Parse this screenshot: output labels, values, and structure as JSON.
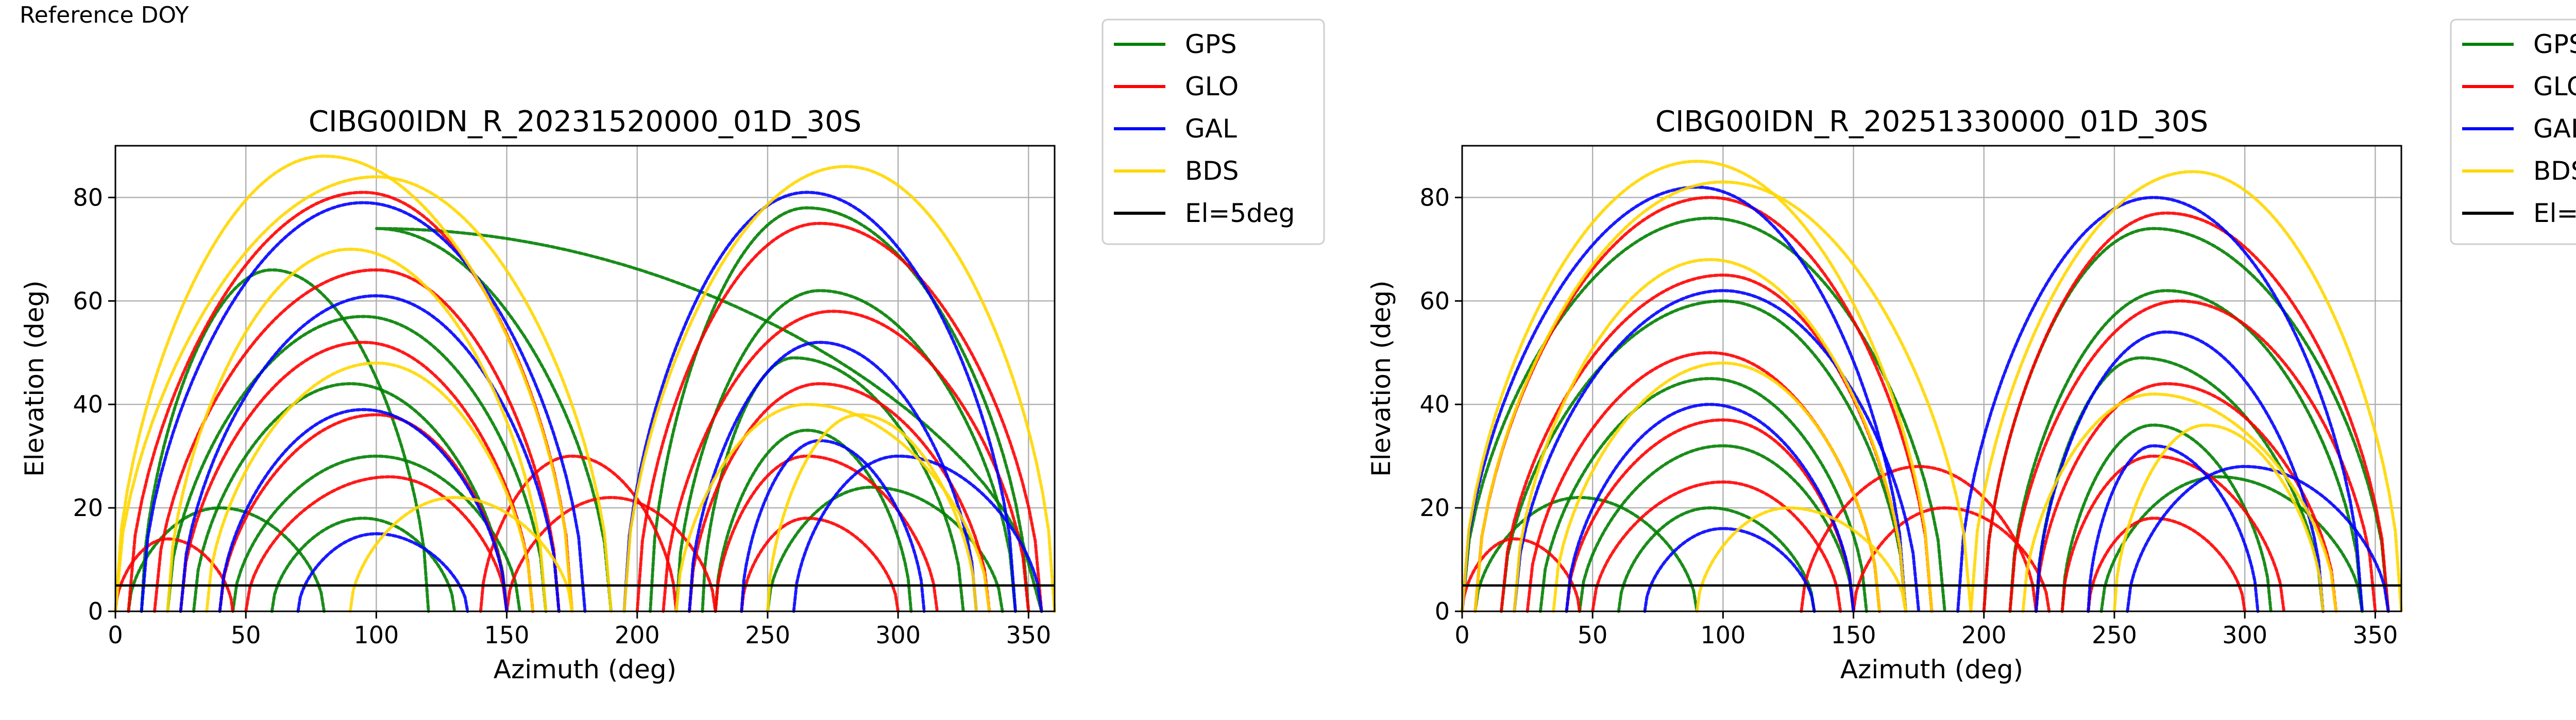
{
  "figure": {
    "label": "Reference DOY"
  },
  "chart_data": [
    {
      "type": "scatter",
      "title": "CIBG00IDN_R_20231520000_01D_30S",
      "xlabel": "Azimuth (deg)",
      "ylabel": "Elevation (deg)",
      "xlim": [
        0,
        360
      ],
      "ylim": [
        0,
        90
      ],
      "xticks": [
        0,
        50,
        100,
        150,
        200,
        250,
        300,
        350
      ],
      "yticks": [
        0,
        20,
        40,
        60,
        80
      ],
      "grid": true,
      "legend_position": "outside-right",
      "legend": [
        "GPS",
        "GLO",
        "GAL",
        "BDS",
        "El=5deg"
      ],
      "series": [
        {
          "name": "GPS",
          "color": "#008000",
          "arcs": [
            {
              "az": [
                355,
                100,
                190
              ],
              "max_el": 74
            },
            {
              "az": [
                20,
                95,
                165
              ],
              "max_el": 57
            },
            {
              "az": [
                30,
                90,
                150
              ],
              "max_el": 44
            },
            {
              "az": [
                45,
                100,
                155
              ],
              "max_el": 30
            },
            {
              "az": [
                60,
                95,
                130
              ],
              "max_el": 18
            },
            {
              "az": [
                205,
                265,
                350
              ],
              "max_el": 78
            },
            {
              "az": [
                215,
                270,
                345
              ],
              "max_el": 62
            },
            {
              "az": [
                225,
                260,
                325
              ],
              "max_el": 49
            },
            {
              "az": [
                230,
                265,
                305
              ],
              "max_el": 35
            },
            {
              "az": [
                5,
                40,
                80
              ],
              "max_el": 20
            },
            {
              "az": [
                250,
                290,
                340
              ],
              "max_el": 24
            },
            {
              "az": [
                10,
                60,
                120
              ],
              "max_el": 66
            }
          ]
        },
        {
          "name": "GLO",
          "color": "#ff0000",
          "arcs": [
            {
              "az": [
                5,
                95,
                175
              ],
              "max_el": 81
            },
            {
              "az": [
                15,
                100,
                170
              ],
              "max_el": 66
            },
            {
              "az": [
                25,
                95,
                160
              ],
              "max_el": 52
            },
            {
              "az": [
                40,
                100,
                150
              ],
              "max_el": 38
            },
            {
              "az": [
                50,
                105,
                150
              ],
              "max_el": 26
            },
            {
              "az": [
                200,
                270,
                355
              ],
              "max_el": 75
            },
            {
              "az": [
                210,
                275,
                350
              ],
              "max_el": 58
            },
            {
              "az": [
                220,
                270,
                335
              ],
              "max_el": 44
            },
            {
              "az": [
                230,
                265,
                315
              ],
              "max_el": 30
            },
            {
              "az": [
                240,
                265,
                300
              ],
              "max_el": 18
            },
            {
              "az": [
                0,
                20,
                45
              ],
              "max_el": 14
            },
            {
              "az": [
                140,
                175,
                215
              ],
              "max_el": 30
            },
            {
              "az": [
                150,
                190,
                230
              ],
              "max_el": 22
            }
          ]
        },
        {
          "name": "GAL",
          "color": "#0000ff",
          "arcs": [
            {
              "az": [
                10,
                95,
                180
              ],
              "max_el": 79
            },
            {
              "az": [
                25,
                100,
                170
              ],
              "max_el": 61
            },
            {
              "az": [
                40,
                95,
                150
              ],
              "max_el": 39
            },
            {
              "az": [
                70,
                100,
                135
              ],
              "max_el": 15
            },
            {
              "az": [
                195,
                265,
                345
              ],
              "max_el": 81
            },
            {
              "az": [
                220,
                270,
                330
              ],
              "max_el": 52
            },
            {
              "az": [
                240,
                270,
                310
              ],
              "max_el": 33
            },
            {
              "az": [
                260,
                300,
                355
              ],
              "max_el": 30
            }
          ]
        },
        {
          "name": "BDS",
          "color": "#ffd700",
          "arcs": [
            {
              "az": [
                0,
                80,
                175
              ],
              "max_el": 88
            },
            {
              "az": [
                0,
                100,
                190
              ],
              "max_el": 84
            },
            {
              "az": [
                20,
                90,
                165
              ],
              "max_el": 70
            },
            {
              "az": [
                35,
                100,
                160
              ],
              "max_el": 48
            },
            {
              "az": [
                195,
                280,
                360
              ],
              "max_el": 86
            },
            {
              "az": [
                215,
                265,
                335
              ],
              "max_el": 40
            },
            {
              "az": [
                90,
                130,
                175
              ],
              "max_el": 22
            },
            {
              "az": [
                250,
                285,
                330
              ],
              "max_el": 38
            }
          ]
        },
        {
          "name": "El=5deg",
          "color": "#000000",
          "type": "line",
          "x": [
            0,
            360
          ],
          "y": [
            5,
            5
          ]
        }
      ]
    },
    {
      "type": "scatter",
      "title": "CIBG00IDN_R_20251330000_01D_30S",
      "xlabel": "Azimuth (deg)",
      "ylabel": "Elevation (deg)",
      "xlim": [
        0,
        360
      ],
      "ylim": [
        0,
        90
      ],
      "xticks": [
        0,
        50,
        100,
        150,
        200,
        250,
        300,
        350
      ],
      "yticks": [
        0,
        20,
        40,
        60,
        80
      ],
      "grid": true,
      "legend_position": "outside-right",
      "legend": [
        "GPS",
        "GLO",
        "GAL",
        "BDS",
        "El=5deg"
      ],
      "series": [
        {
          "name": "GPS",
          "color": "#008000",
          "arcs": [
            {
              "az": [
                0,
                95,
                185
              ],
              "max_el": 76
            },
            {
              "az": [
                15,
                100,
                170
              ],
              "max_el": 60
            },
            {
              "az": [
                30,
                95,
                155
              ],
              "max_el": 45
            },
            {
              "az": [
                45,
                100,
                150
              ],
              "max_el": 32
            },
            {
              "az": [
                60,
                95,
                135
              ],
              "max_el": 20
            },
            {
              "az": [
                200,
                265,
                355
              ],
              "max_el": 74
            },
            {
              "az": [
                210,
                270,
                345
              ],
              "max_el": 62
            },
            {
              "az": [
                220,
                260,
                330
              ],
              "max_el": 49
            },
            {
              "az": [
                230,
                265,
                310
              ],
              "max_el": 36
            },
            {
              "az": [
                245,
                290,
                345
              ],
              "max_el": 26
            },
            {
              "az": [
                5,
                45,
                90
              ],
              "max_el": 22
            }
          ]
        },
        {
          "name": "GLO",
          "color": "#ff0000",
          "arcs": [
            {
              "az": [
                5,
                95,
                180
              ],
              "max_el": 80
            },
            {
              "az": [
                15,
                100,
                170
              ],
              "max_el": 65
            },
            {
              "az": [
                25,
                95,
                160
              ],
              "max_el": 50
            },
            {
              "az": [
                40,
                100,
                150
              ],
              "max_el": 37
            },
            {
              "az": [
                50,
                100,
                145
              ],
              "max_el": 25
            },
            {
              "az": [
                200,
                270,
                355
              ],
              "max_el": 77
            },
            {
              "az": [
                210,
                275,
                350
              ],
              "max_el": 60
            },
            {
              "az": [
                220,
                270,
                335
              ],
              "max_el": 44
            },
            {
              "az": [
                230,
                265,
                315
              ],
              "max_el": 30
            },
            {
              "az": [
                240,
                265,
                300
              ],
              "max_el": 18
            },
            {
              "az": [
                0,
                20,
                45
              ],
              "max_el": 14
            },
            {
              "az": [
                130,
                175,
                220
              ],
              "max_el": 28
            },
            {
              "az": [
                150,
                185,
                225
              ],
              "max_el": 20
            }
          ]
        },
        {
          "name": "GAL",
          "color": "#0000ff",
          "arcs": [
            {
              "az": [
                0,
                90,
                170
              ],
              "max_el": 82
            },
            {
              "az": [
                20,
                100,
                175
              ],
              "max_el": 62
            },
            {
              "az": [
                40,
                95,
                150
              ],
              "max_el": 40
            },
            {
              "az": [
                70,
                100,
                135
              ],
              "max_el": 16
            },
            {
              "az": [
                190,
                265,
                345
              ],
              "max_el": 80
            },
            {
              "az": [
                220,
                270,
                330
              ],
              "max_el": 54
            },
            {
              "az": [
                240,
                265,
                305
              ],
              "max_el": 32
            },
            {
              "az": [
                255,
                300,
                355
              ],
              "max_el": 28
            }
          ]
        },
        {
          "name": "BDS",
          "color": "#ffd700",
          "arcs": [
            {
              "az": [
                0,
                90,
                180
              ],
              "max_el": 87
            },
            {
              "az": [
                5,
                100,
                195
              ],
              "max_el": 83
            },
            {
              "az": [
                20,
                95,
                170
              ],
              "max_el": 68
            },
            {
              "az": [
                35,
                100,
                160
              ],
              "max_el": 48
            },
            {
              "az": [
                195,
                280,
                360
              ],
              "max_el": 85
            },
            {
              "az": [
                215,
                265,
                335
              ],
              "max_el": 42
            },
            {
              "az": [
                90,
                125,
                170
              ],
              "max_el": 20
            },
            {
              "az": [
                250,
                285,
                330
              ],
              "max_el": 36
            }
          ]
        },
        {
          "name": "El=5deg",
          "color": "#000000",
          "type": "line",
          "x": [
            0,
            360
          ],
          "y": [
            5,
            5
          ]
        }
      ]
    }
  ]
}
